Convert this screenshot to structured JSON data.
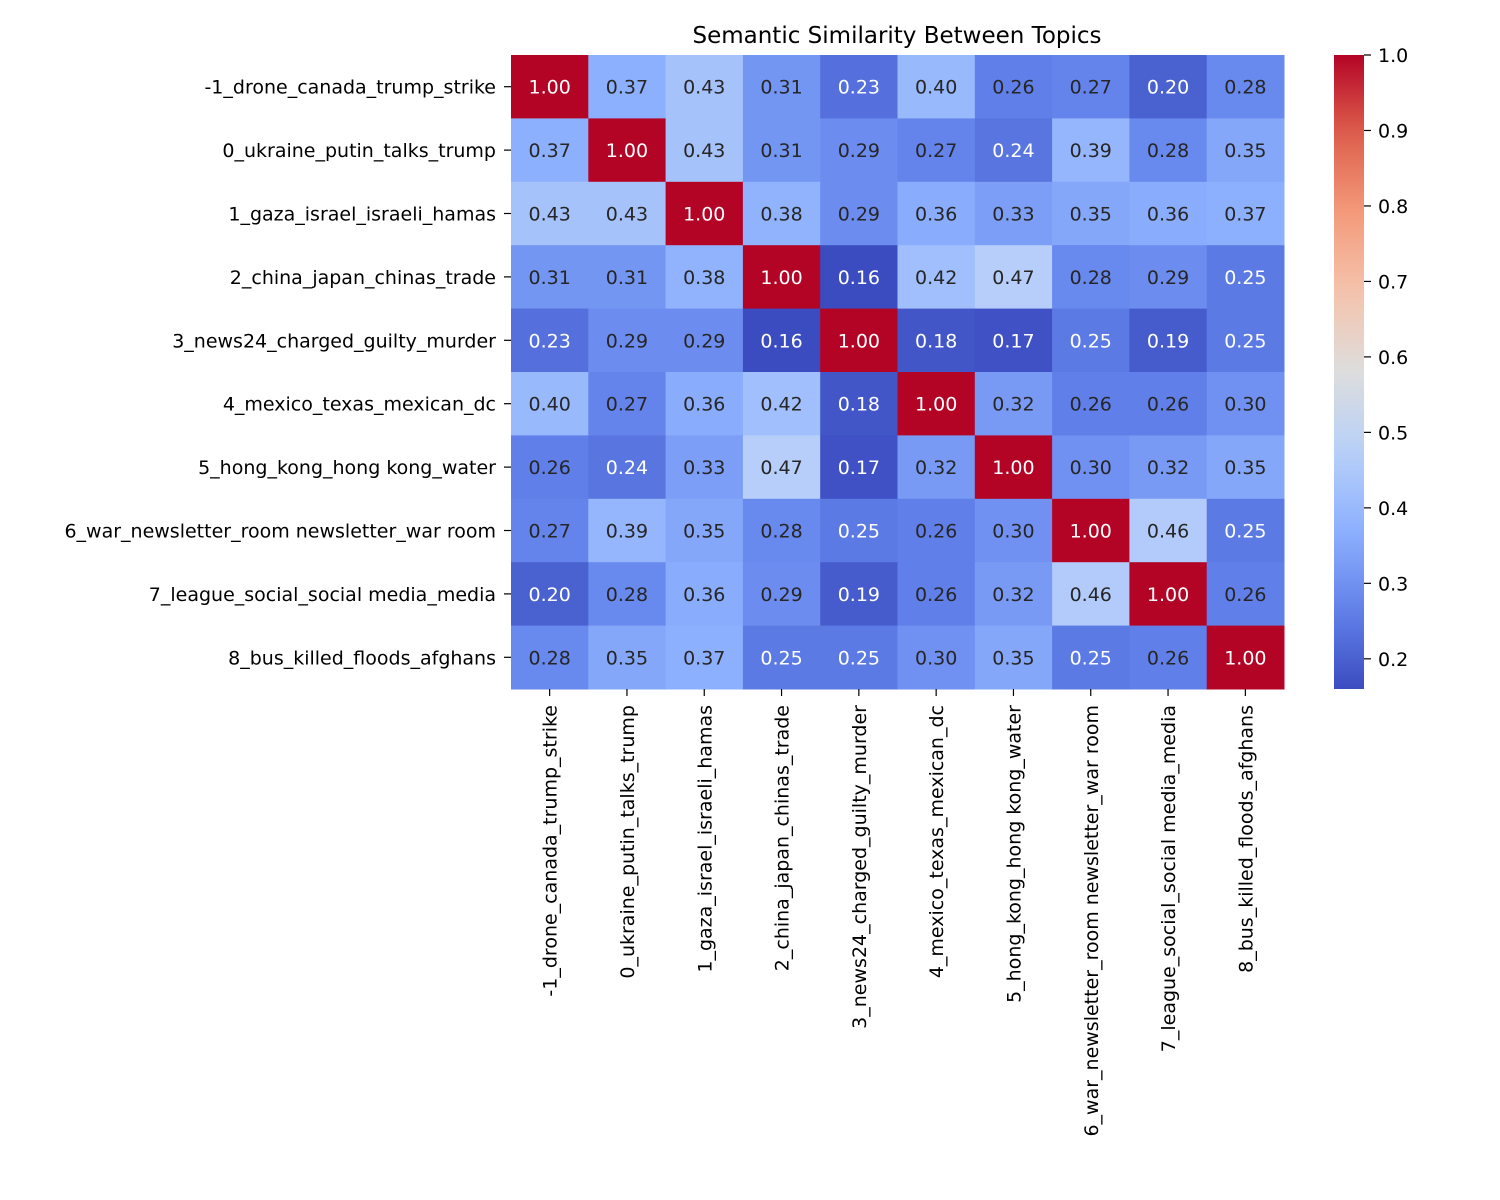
{
  "chart_data": {
    "type": "heatmap",
    "title": "Semantic Similarity Between Topics",
    "xlabel": "",
    "ylabel": "",
    "row_labels": [
      "-1_drone_canada_trump_strike",
      "0_ukraine_putin_talks_trump",
      "1_gaza_israel_israeli_hamas",
      "2_china_japan_chinas_trade",
      "3_news24_charged_guilty_murder",
      "4_mexico_texas_mexican_dc",
      "5_hong_kong_hong kong_water",
      "6_war_newsletter_room newsletter_war room",
      "7_league_social_social media_media",
      "8_bus_killed_floods_afghans"
    ],
    "col_labels": [
      "-1_drone_canada_trump_strike",
      "0_ukraine_putin_talks_trump",
      "1_gaza_israel_israeli_hamas",
      "2_china_japan_chinas_trade",
      "3_news24_charged_guilty_murder",
      "4_mexico_texas_mexican_dc",
      "5_hong_kong_hong kong_water",
      "6_war_newsletter_room newsletter_war room",
      "7_league_social_social media_media",
      "8_bus_killed_floods_afghans"
    ],
    "values": [
      [
        1.0,
        0.37,
        0.43,
        0.31,
        0.23,
        0.4,
        0.26,
        0.27,
        0.2,
        0.28
      ],
      [
        0.37,
        1.0,
        0.43,
        0.31,
        0.29,
        0.27,
        0.24,
        0.39,
        0.28,
        0.35
      ],
      [
        0.43,
        0.43,
        1.0,
        0.38,
        0.29,
        0.36,
        0.33,
        0.35,
        0.36,
        0.37
      ],
      [
        0.31,
        0.31,
        0.38,
        1.0,
        0.16,
        0.42,
        0.47,
        0.28,
        0.29,
        0.25
      ],
      [
        0.23,
        0.29,
        0.29,
        0.16,
        1.0,
        0.18,
        0.17,
        0.25,
        0.19,
        0.25
      ],
      [
        0.4,
        0.27,
        0.36,
        0.42,
        0.18,
        1.0,
        0.32,
        0.26,
        0.26,
        0.3
      ],
      [
        0.26,
        0.24,
        0.33,
        0.47,
        0.17,
        0.32,
        1.0,
        0.3,
        0.32,
        0.35
      ],
      [
        0.27,
        0.39,
        0.35,
        0.28,
        0.25,
        0.26,
        0.3,
        1.0,
        0.46,
        0.25
      ],
      [
        0.2,
        0.28,
        0.36,
        0.29,
        0.19,
        0.26,
        0.32,
        0.46,
        1.0,
        0.26
      ],
      [
        0.28,
        0.35,
        0.37,
        0.25,
        0.25,
        0.3,
        0.35,
        0.25,
        0.26,
        1.0
      ]
    ],
    "value_format": "0.00",
    "colormap": "coolwarm",
    "vmin": 0.16,
    "vmax": 1.0,
    "colorbar_ticks": [
      0.2,
      0.3,
      0.4,
      0.5,
      0.6,
      0.7,
      0.8,
      0.9,
      1.0
    ],
    "colorbar_tick_labels": [
      "0.2",
      "0.3",
      "0.4",
      "0.5",
      "0.6",
      "0.7",
      "0.8",
      "0.9",
      "1.0"
    ],
    "colorbar": "right",
    "grid": false
  }
}
